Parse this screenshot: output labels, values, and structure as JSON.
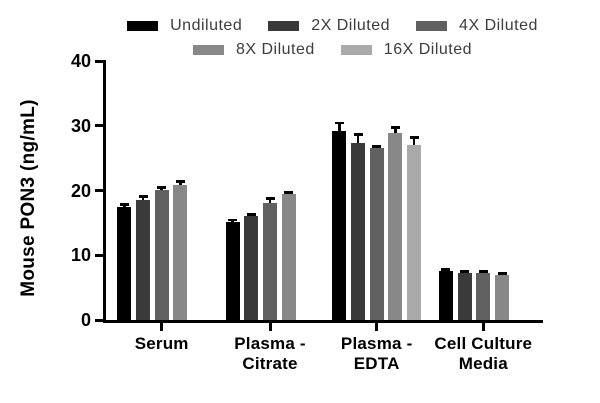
{
  "chart_data": {
    "type": "bar",
    "title": "",
    "xlabel": "",
    "ylabel": "Mouse PON3 (ng/mL)",
    "ylim": [
      0,
      40
    ],
    "yticks": [
      0,
      10,
      20,
      30,
      40
    ],
    "grid": false,
    "legend_position": "top",
    "error_bars": true,
    "categories": [
      "Serum",
      "Plasma -\nCitrate",
      "Plasma -\nEDTA",
      "Cell Culture\nMedia"
    ],
    "series": [
      {
        "name": "Undiluted",
        "color": "#000000",
        "values": [
          17.4,
          15.1,
          29.2,
          7.6
        ],
        "errors": [
          0.5,
          0.4,
          1.3,
          0.25
        ]
      },
      {
        "name": "2X Diluted",
        "color": "#3a3a3a",
        "values": [
          18.5,
          16.1,
          27.3,
          7.3
        ],
        "errors": [
          0.6,
          0.3,
          1.4,
          0.2
        ]
      },
      {
        "name": "4X Diluted",
        "color": "#606060",
        "values": [
          20.1,
          18.1,
          26.5,
          7.3
        ],
        "errors": [
          0.4,
          0.7,
          0.4,
          0.2
        ]
      },
      {
        "name": "8X Diluted",
        "color": "#888888",
        "values": [
          20.8,
          19.4,
          28.9,
          6.9
        ],
        "errors": [
          0.7,
          0.3,
          0.9,
          0.3
        ]
      },
      {
        "name": "16X Diluted",
        "color": "#aaaaaa",
        "values": [
          null,
          null,
          27.1,
          null
        ],
        "errors": [
          null,
          null,
          1.2,
          null
        ]
      }
    ]
  }
}
